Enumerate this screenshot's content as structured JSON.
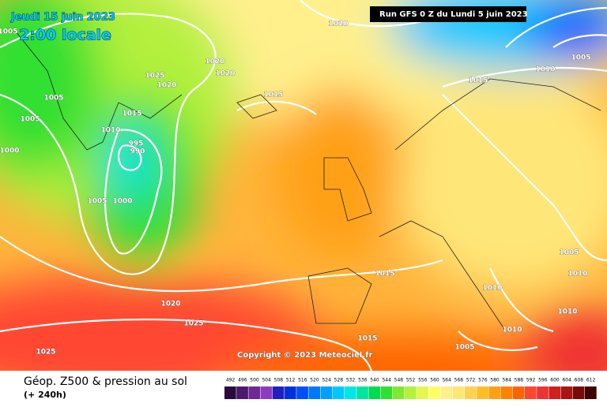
{
  "header": {
    "date": "Jeudi 15 juin 2023",
    "time": "2:00 locale",
    "run": "Run GFS 0 Z du Lundi 5 juin 2023"
  },
  "copyright": "Copyright © 2023 Meteociel.fr",
  "footer": {
    "title": "Géop. Z500 & pression au sol",
    "subtitle": "(+ 240h)"
  },
  "isobar_labels": [
    1005,
    1020,
    1005,
    1025,
    1020,
    1020,
    1020,
    1010,
    1005,
    1015,
    1015,
    1015,
    1005,
    1010,
    995,
    990,
    1000,
    1005,
    1000,
    1005,
    1015,
    1010,
    1010,
    1020,
    1010,
    1025,
    1010,
    1015,
    1005,
    1025
  ],
  "legend": {
    "labels": [
      492,
      496,
      500,
      504,
      508,
      512,
      516,
      520,
      524,
      528,
      532,
      536,
      540,
      544,
      548,
      552,
      556,
      560,
      564,
      568,
      572,
      576,
      580,
      584,
      588,
      592,
      596,
      600,
      604,
      608,
      612
    ],
    "colors": [
      "#2b0b3f",
      "#4c1a6b",
      "#6d2a96",
      "#8f3bbf",
      "#2020c0",
      "#0030e0",
      "#0050ff",
      "#0078ff",
      "#00a0ff",
      "#00c8ff",
      "#00e6e6",
      "#00e6a0",
      "#00dc50",
      "#30e030",
      "#80e830",
      "#b4f03c",
      "#e6f550",
      "#ffff64",
      "#fff08c",
      "#ffe678",
      "#ffd250",
      "#ffbe28",
      "#ffa014",
      "#ff8200",
      "#ff6400",
      "#ff4632",
      "#f03232",
      "#d21e1e",
      "#aa1414",
      "#780a0a",
      "#3c0000"
    ]
  }
}
